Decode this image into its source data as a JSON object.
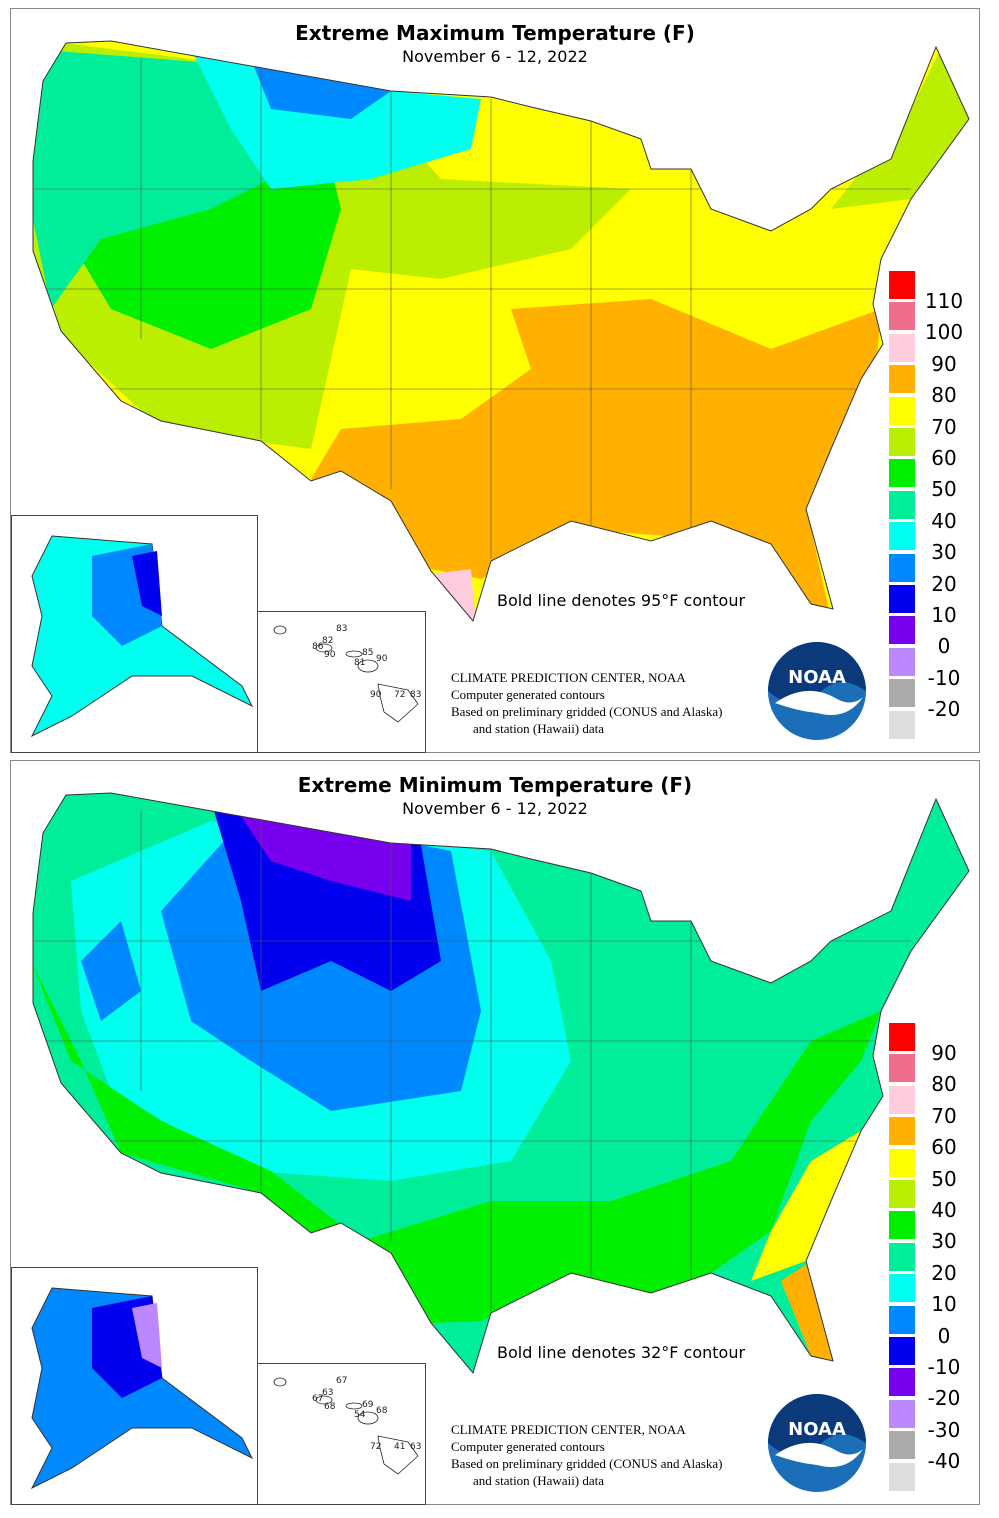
{
  "panels": [
    {
      "title": "Extreme Maximum Temperature (F)",
      "subtitle": "November 6 - 12, 2022",
      "contour_note": "Bold line denotes 95°F contour",
      "legend": {
        "colors": [
          "#ff0000",
          "#ee6e8c",
          "#ffccdd",
          "#ffb000",
          "#ffff00",
          "#bbee00",
          "#00ee00",
          "#00ee99",
          "#00ffee",
          "#0088ff",
          "#0000ee",
          "#7700ee",
          "#bb88ff",
          "#aaaaaa",
          "#dddddd"
        ],
        "labels": [
          "110",
          "100",
          "90",
          "80",
          "70",
          "60",
          "50",
          "40",
          "30",
          "20",
          "10",
          "0",
          "-10",
          "-20"
        ]
      },
      "hawaii": [
        "83",
        "86",
        "82",
        "90",
        "85",
        "81",
        "90",
        "90",
        "72",
        "83"
      ]
    },
    {
      "title": "Extreme Minimum Temperature (F)",
      "subtitle": "November 6 - 12, 2022",
      "contour_note": "Bold line denotes 32°F contour",
      "legend": {
        "colors": [
          "#ff0000",
          "#ee6e8c",
          "#ffccdd",
          "#ffb000",
          "#ffff00",
          "#bbee00",
          "#00ee00",
          "#00ee99",
          "#00ffee",
          "#0088ff",
          "#0000ee",
          "#7700ee",
          "#bb88ff",
          "#aaaaaa",
          "#dddddd"
        ],
        "labels": [
          "90",
          "80",
          "70",
          "60",
          "50",
          "40",
          "30",
          "20",
          "10",
          "0",
          "-10",
          "-20",
          "-30",
          "-40"
        ]
      },
      "hawaii": [
        "67",
        "67",
        "63",
        "68",
        "69",
        "54",
        "68",
        "72",
        "41",
        "63"
      ]
    }
  ],
  "credits": {
    "line1": "CLIMATE PREDICTION CENTER, NOAA",
    "line2": "Computer generated contours",
    "line3": "Based on preliminary gridded (CONUS and Alaska)",
    "line4": "and station (Hawaii) data"
  },
  "logo_text": "NOAA"
}
